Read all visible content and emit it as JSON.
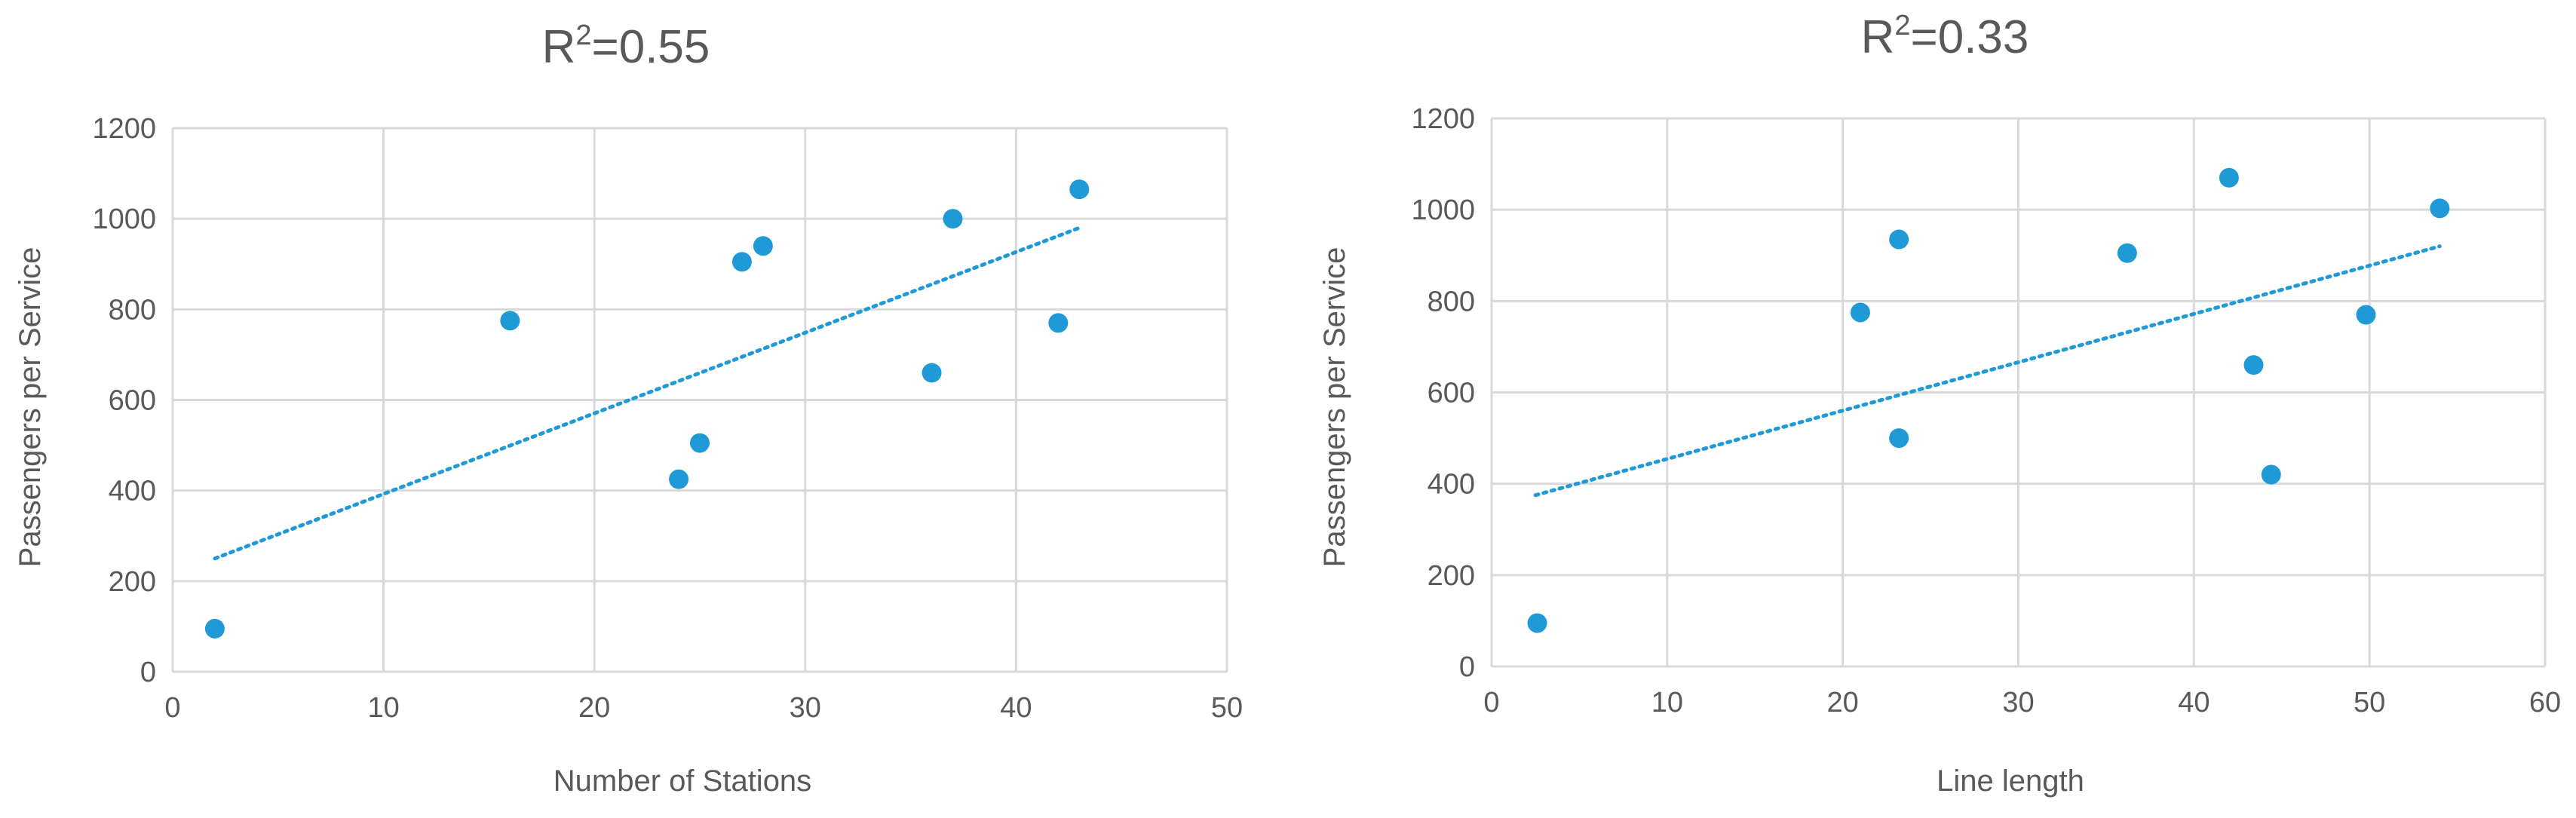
{
  "chart_data": [
    {
      "type": "scatter",
      "title_main": "R",
      "title_sup": "2",
      "title_rest": "=0.55",
      "xlabel": "Number of Stations",
      "ylabel": "Passengers per Service",
      "xlim": [
        0,
        50
      ],
      "ylim": [
        0,
        1200
      ],
      "xticks": [
        0,
        10,
        20,
        30,
        40,
        50
      ],
      "yticks": [
        0,
        200,
        400,
        600,
        800,
        1000,
        1200
      ],
      "grid": true,
      "marker_color": "#1f9ad6",
      "trendline": {
        "type": "linear",
        "style": "dotted",
        "x": [
          2,
          43
        ],
        "y": [
          250,
          980
        ]
      },
      "points": [
        {
          "x": 2,
          "y": 95
        },
        {
          "x": 16,
          "y": 775
        },
        {
          "x": 24,
          "y": 425
        },
        {
          "x": 25,
          "y": 505
        },
        {
          "x": 27,
          "y": 905
        },
        {
          "x": 28,
          "y": 940
        },
        {
          "x": 36,
          "y": 660
        },
        {
          "x": 37,
          "y": 1000
        },
        {
          "x": 42,
          "y": 770
        },
        {
          "x": 43,
          "y": 1065
        }
      ]
    },
    {
      "type": "scatter",
      "title_main": "R",
      "title_sup": "2",
      "title_rest": "=0.33",
      "xlabel": "Line length",
      "ylabel": "Passengers per Service",
      "xlim": [
        0,
        60
      ],
      "ylim": [
        0,
        1200
      ],
      "xticks": [
        0,
        10,
        20,
        30,
        40,
        50,
        60
      ],
      "yticks": [
        0,
        200,
        400,
        600,
        800,
        1000,
        1200
      ],
      "grid": true,
      "marker_color": "#1f9ad6",
      "trendline": {
        "type": "linear",
        "style": "dotted",
        "x": [
          2.5,
          54
        ],
        "y": [
          375,
          920
        ]
      },
      "points": [
        {
          "x": 2.6,
          "y": 95
        },
        {
          "x": 21,
          "y": 775
        },
        {
          "x": 23.2,
          "y": 935
        },
        {
          "x": 23.2,
          "y": 500
        },
        {
          "x": 36.2,
          "y": 905
        },
        {
          "x": 42,
          "y": 1070
        },
        {
          "x": 43.4,
          "y": 660
        },
        {
          "x": 44.4,
          "y": 420
        },
        {
          "x": 49.8,
          "y": 770
        },
        {
          "x": 54,
          "y": 1003
        }
      ]
    }
  ]
}
